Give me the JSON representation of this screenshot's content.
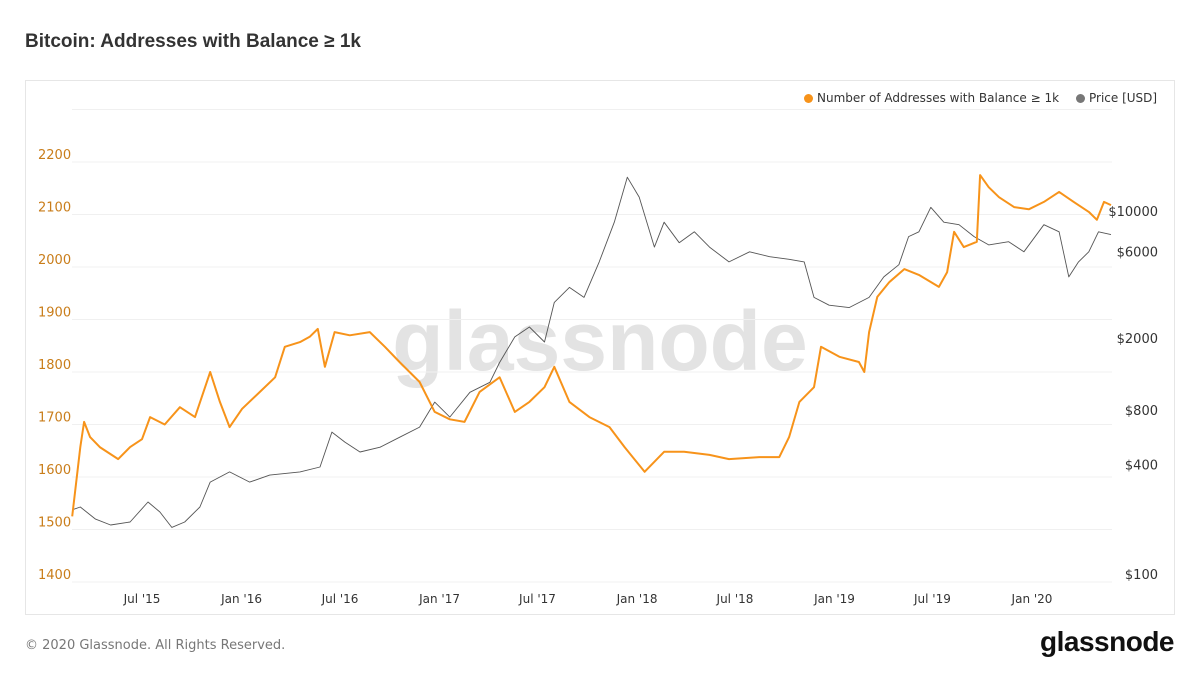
{
  "title": "Bitcoin: Addresses with Balance ≥ 1k",
  "footer": "© 2020 Glassnode. All Rights Reserved.",
  "logo": "glassnode",
  "watermark": "glassnode",
  "chart_data": {
    "type": "line",
    "title": "Bitcoin: Addresses with Balance ≥ 1k",
    "legend_position": "top-right",
    "grid": true,
    "x_ticks": [
      "Jul '15",
      "Jan '16",
      "Jul '16",
      "Jan '17",
      "Jul '17",
      "Jan '18",
      "Jul '18",
      "Jan '19",
      "Jul '19",
      "Jan '20"
    ],
    "x_tick_dates": [
      "2015-07-01",
      "2016-01-01",
      "2016-07-01",
      "2017-01-01",
      "2017-07-01",
      "2018-01-01",
      "2018-07-01",
      "2019-01-01",
      "2019-07-01",
      "2020-01-01"
    ],
    "y_left": {
      "ticks": [
        1400,
        1500,
        1600,
        1700,
        1800,
        1900,
        2000,
        2100,
        2200
      ],
      "range": [
        1400,
        2200
      ],
      "scale": "linear",
      "color": "#c97d1a"
    },
    "y_right": {
      "ticks": [
        100,
        400,
        800,
        2000,
        6000,
        10000
      ],
      "tick_labels": [
        "$100",
        "$400",
        "$800",
        "$2000",
        "$6000",
        "$10000"
      ],
      "range": [
        100,
        10000
      ],
      "scale": "log"
    },
    "series": [
      {
        "name": "Number of Addresses with Balance ≥ 1k",
        "color": "#f7931a",
        "axis": "left",
        "points": [
          [
            "2015-02-22",
            1525
          ],
          [
            "2015-03-09",
            1657
          ],
          [
            "2015-03-16",
            1705
          ],
          [
            "2015-03-27",
            1676
          ],
          [
            "2015-04-14",
            1657
          ],
          [
            "2015-05-18",
            1634
          ],
          [
            "2015-06-09",
            1657
          ],
          [
            "2015-07-01",
            1672
          ],
          [
            "2015-07-16",
            1714
          ],
          [
            "2015-08-12",
            1700
          ],
          [
            "2015-09-09",
            1733
          ],
          [
            "2015-10-07",
            1714
          ],
          [
            "2015-11-04",
            1800
          ],
          [
            "2015-11-22",
            1743
          ],
          [
            "2015-12-10",
            1695
          ],
          [
            "2016-01-02",
            1730
          ],
          [
            "2016-02-04",
            1762
          ],
          [
            "2016-03-03",
            1790
          ],
          [
            "2016-03-21",
            1848
          ],
          [
            "2016-04-18",
            1857
          ],
          [
            "2016-05-06",
            1867
          ],
          [
            "2016-05-21",
            1882
          ],
          [
            "2016-06-03",
            1810
          ],
          [
            "2016-06-21",
            1876
          ],
          [
            "2016-07-19",
            1870
          ],
          [
            "2016-08-25",
            1876
          ],
          [
            "2016-09-22",
            1848
          ],
          [
            "2016-10-19",
            1819
          ],
          [
            "2016-11-25",
            1781
          ],
          [
            "2016-12-23",
            1724
          ],
          [
            "2017-01-20",
            1710
          ],
          [
            "2017-02-16",
            1705
          ],
          [
            "2017-03-16",
            1762
          ],
          [
            "2017-04-22",
            1790
          ],
          [
            "2017-05-20",
            1724
          ],
          [
            "2017-06-16",
            1743
          ],
          [
            "2017-07-14",
            1771
          ],
          [
            "2017-08-01",
            1810
          ],
          [
            "2017-08-29",
            1743
          ],
          [
            "2017-10-05",
            1714
          ],
          [
            "2017-11-11",
            1695
          ],
          [
            "2017-12-09",
            1657
          ],
          [
            "2018-01-15",
            1610
          ],
          [
            "2018-02-20",
            1648
          ],
          [
            "2018-03-29",
            1648
          ],
          [
            "2018-05-15",
            1642
          ],
          [
            "2018-06-20",
            1634
          ],
          [
            "2018-08-15",
            1638
          ],
          [
            "2018-09-21",
            1638
          ],
          [
            "2018-10-09",
            1676
          ],
          [
            "2018-10-28",
            1743
          ],
          [
            "2018-11-24",
            1771
          ],
          [
            "2018-12-07",
            1848
          ],
          [
            "2019-01-10",
            1829
          ],
          [
            "2019-02-15",
            1819
          ],
          [
            "2019-02-25",
            1800
          ],
          [
            "2019-03-06",
            1876
          ],
          [
            "2019-03-21",
            1943
          ],
          [
            "2019-04-12",
            1971
          ],
          [
            "2019-05-10",
            1996
          ],
          [
            "2019-06-06",
            1985
          ],
          [
            "2019-07-13",
            1962
          ],
          [
            "2019-07-28",
            1990
          ],
          [
            "2019-08-10",
            2067
          ],
          [
            "2019-08-28",
            2038
          ],
          [
            "2019-09-21",
            2048
          ],
          [
            "2019-09-27",
            2175
          ],
          [
            "2019-10-13",
            2152
          ],
          [
            "2019-11-01",
            2133
          ],
          [
            "2019-11-29",
            2114
          ],
          [
            "2019-12-26",
            2110
          ],
          [
            "2020-01-23",
            2124
          ],
          [
            "2020-02-20",
            2143
          ],
          [
            "2020-03-18",
            2124
          ],
          [
            "2020-04-15",
            2105
          ],
          [
            "2020-04-30",
            2090
          ],
          [
            "2020-05-13",
            2124
          ],
          [
            "2020-05-26",
            2118
          ]
        ]
      },
      {
        "name": "Price [USD]",
        "color": "#555555",
        "axis": "right",
        "points": [
          [
            "2015-02-22",
            250
          ],
          [
            "2015-03-09",
            259
          ],
          [
            "2015-04-06",
            222
          ],
          [
            "2015-05-04",
            206
          ],
          [
            "2015-06-09",
            214
          ],
          [
            "2015-07-12",
            276
          ],
          [
            "2015-08-03",
            243
          ],
          [
            "2015-08-25",
            200
          ],
          [
            "2015-09-18",
            214
          ],
          [
            "2015-10-16",
            259
          ],
          [
            "2015-11-04",
            355
          ],
          [
            "2015-12-10",
            404
          ],
          [
            "2016-01-16",
            355
          ],
          [
            "2016-02-22",
            388
          ],
          [
            "2016-04-18",
            404
          ],
          [
            "2016-05-25",
            430
          ],
          [
            "2016-06-16",
            670
          ],
          [
            "2016-07-10",
            590
          ],
          [
            "2016-08-07",
            520
          ],
          [
            "2016-09-13",
            553
          ],
          [
            "2016-10-19",
            627
          ],
          [
            "2016-11-25",
            714
          ],
          [
            "2016-12-23",
            980
          ],
          [
            "2017-01-20",
            810
          ],
          [
            "2017-02-26",
            1110
          ],
          [
            "2017-04-04",
            1260
          ],
          [
            "2017-04-22",
            1620
          ],
          [
            "2017-05-20",
            2240
          ],
          [
            "2017-06-16",
            2540
          ],
          [
            "2017-07-14",
            2100
          ],
          [
            "2017-08-01",
            3470
          ],
          [
            "2017-08-29",
            4200
          ],
          [
            "2017-09-25",
            3700
          ],
          [
            "2017-10-23",
            5800
          ],
          [
            "2017-11-20",
            9600
          ],
          [
            "2017-12-14",
            17000
          ],
          [
            "2018-01-05",
            13200
          ],
          [
            "2018-02-02",
            7000
          ],
          [
            "2018-02-20",
            9600
          ],
          [
            "2018-03-20",
            7400
          ],
          [
            "2018-04-17",
            8500
          ],
          [
            "2018-05-15",
            7000
          ],
          [
            "2018-06-20",
            5800
          ],
          [
            "2018-07-28",
            6600
          ],
          [
            "2018-09-03",
            6200
          ],
          [
            "2018-10-09",
            6000
          ],
          [
            "2018-11-06",
            5800
          ],
          [
            "2018-11-24",
            3700
          ],
          [
            "2018-12-22",
            3350
          ],
          [
            "2019-01-28",
            3250
          ],
          [
            "2019-03-06",
            3700
          ],
          [
            "2019-04-02",
            4800
          ],
          [
            "2019-04-30",
            5600
          ],
          [
            "2019-05-18",
            8000
          ],
          [
            "2019-06-06",
            8500
          ],
          [
            "2019-06-28",
            11600
          ],
          [
            "2019-07-22",
            9600
          ],
          [
            "2019-08-19",
            9300
          ],
          [
            "2019-09-16",
            8000
          ],
          [
            "2019-10-13",
            7200
          ],
          [
            "2019-11-19",
            7500
          ],
          [
            "2019-12-17",
            6600
          ],
          [
            "2020-01-23",
            9300
          ],
          [
            "2020-02-20",
            8500
          ],
          [
            "2020-03-09",
            4800
          ],
          [
            "2020-03-27",
            5800
          ],
          [
            "2020-04-15",
            6600
          ],
          [
            "2020-05-03",
            8500
          ],
          [
            "2020-05-26",
            8200
          ]
        ]
      }
    ]
  }
}
